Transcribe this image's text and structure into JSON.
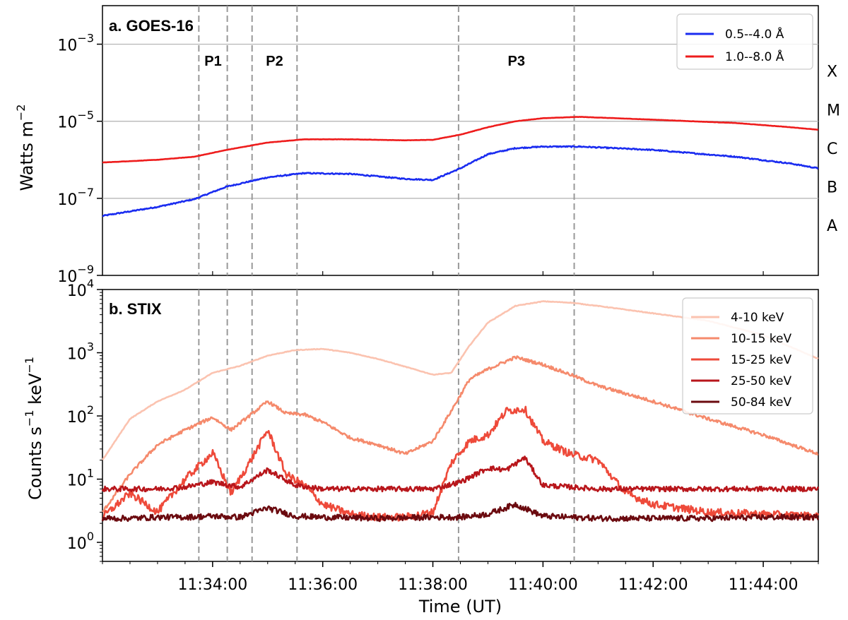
{
  "chart_data": [
    {
      "type": "line",
      "title": "a. GOES-16",
      "ylabel": "Watts m",
      "ylabel_exponent": "−2",
      "yscale": "log",
      "ylim": [
        1e-09,
        0.01
      ],
      "yticks": [
        {
          "value": 1e-09,
          "base": "10",
          "exp": "−9"
        },
        {
          "value": 1e-07,
          "base": "10",
          "exp": "−7"
        },
        {
          "value": 1e-05,
          "base": "10",
          "exp": "−5"
        },
        {
          "value": 0.001,
          "base": "10",
          "exp": "−3"
        }
      ],
      "class_labels": [
        {
          "label": "X",
          "value": 0.0002
        },
        {
          "label": "M",
          "value": 2e-05
        },
        {
          "label": "C",
          "value": 2e-06
        },
        {
          "label": "B",
          "value": 2e-07
        },
        {
          "label": "A",
          "value": 2e-08
        }
      ],
      "hgrid": [
        0.001,
        1e-05,
        1e-07
      ],
      "legend": "top-right",
      "series": [
        {
          "name": "0.5--4.0 Å",
          "color": "#1a2cf0",
          "x": [
            "11:32:00",
            "11:33:00",
            "11:33:40",
            "11:34:15",
            "11:35:00",
            "11:35:40",
            "11:36:30",
            "11:37:30",
            "11:38:00",
            "11:38:30",
            "11:39:00",
            "11:39:30",
            "11:40:00",
            "11:40:40",
            "11:42:00",
            "11:43:30",
            "11:44:30",
            "11:45:00"
          ],
          "y": [
            3.5e-08,
            6e-08,
            9.5e-08,
            2e-07,
            3.5e-07,
            4.5e-07,
            4.3e-07,
            3.2e-07,
            3e-07,
            6e-07,
            1.4e-06,
            2e-06,
            2.2e-06,
            2.2e-06,
            1.8e-06,
            1.2e-06,
            8e-07,
            6e-07
          ]
        },
        {
          "name": "1.0--8.0 Å",
          "color": "#ee1c1c",
          "x": [
            "11:32:00",
            "11:33:00",
            "11:33:40",
            "11:34:15",
            "11:35:00",
            "11:35:40",
            "11:36:30",
            "11:37:30",
            "11:38:00",
            "11:38:30",
            "11:39:00",
            "11:39:30",
            "11:40:00",
            "11:40:40",
            "11:42:00",
            "11:43:30",
            "11:44:30",
            "11:45:00"
          ],
          "y": [
            8.5e-07,
            1e-06,
            1.2e-06,
            1.8e-06,
            2.8e-06,
            3.4e-06,
            3.4e-06,
            3.2e-06,
            3.3e-06,
            4.5e-06,
            7e-06,
            1e-05,
            1.2e-05,
            1.3e-05,
            1.1e-05,
            9e-06,
            7e-06,
            6e-06
          ]
        }
      ]
    },
    {
      "type": "line",
      "title": "b. STIX",
      "ylabel": "Counts s",
      "ylabel_exponent1": "−1",
      "ylabel_mid": " keV",
      "ylabel_exponent2": "−1",
      "yscale": "log",
      "ylim": [
        0.5,
        10000
      ],
      "yticks": [
        {
          "value": 1,
          "base": "10",
          "exp": "0"
        },
        {
          "value": 10,
          "base": "10",
          "exp": "1"
        },
        {
          "value": 100,
          "base": "10",
          "exp": "2"
        },
        {
          "value": 1000,
          "base": "10",
          "exp": "3"
        },
        {
          "value": 10000,
          "base": "10",
          "exp": "4"
        }
      ],
      "xlabel": "Time (UT)",
      "xlim": [
        "11:32:00",
        "11:45:00"
      ],
      "xticks": [
        "11:34:00",
        "11:36:00",
        "11:38:00",
        "11:40:00",
        "11:42:00",
        "11:44:00"
      ],
      "legend": "top-right",
      "series": [
        {
          "name": "4-10 keV",
          "color": "#fbc3b0",
          "x": [
            "11:32:00",
            "11:32:30",
            "11:33:00",
            "11:33:30",
            "11:34:00",
            "11:34:30",
            "11:35:00",
            "11:35:30",
            "11:36:00",
            "11:36:30",
            "11:37:00",
            "11:37:30",
            "11:38:00",
            "11:38:20",
            "11:38:40",
            "11:39:00",
            "11:39:30",
            "11:40:00",
            "11:40:30",
            "11:41:00",
            "11:42:00",
            "11:43:00",
            "11:44:00",
            "11:45:00"
          ],
          "y": [
            20,
            90,
            170,
            260,
            480,
            620,
            900,
            1100,
            1150,
            1000,
            800,
            600,
            450,
            480,
            1300,
            3000,
            5500,
            6500,
            6200,
            5500,
            4200,
            3200,
            1900,
            800
          ]
        },
        {
          "name": "10-15 keV",
          "color": "#f58a6c",
          "x": [
            "11:32:00",
            "11:32:30",
            "11:33:00",
            "11:33:30",
            "11:34:00",
            "11:34:20",
            "11:34:40",
            "11:35:00",
            "11:35:20",
            "11:35:40",
            "11:36:00",
            "11:36:30",
            "11:37:00",
            "11:37:30",
            "11:38:00",
            "11:38:20",
            "11:38:40",
            "11:39:00",
            "11:39:30",
            "11:40:00",
            "11:40:30",
            "11:41:00",
            "11:42:00",
            "11:43:00",
            "11:44:00",
            "11:45:00"
          ],
          "y": [
            3,
            12,
            35,
            60,
            95,
            60,
            100,
            170,
            110,
            105,
            80,
            45,
            35,
            25,
            40,
            120,
            380,
            550,
            850,
            650,
            450,
            300,
            170,
            90,
            50,
            25
          ]
        },
        {
          "name": "15-25 keV",
          "color": "#ee4a3a",
          "x": [
            "11:32:00",
            "11:32:30",
            "11:33:00",
            "11:33:30",
            "11:34:00",
            "11:34:20",
            "11:34:40",
            "11:35:00",
            "11:35:20",
            "11:35:40",
            "11:36:00",
            "11:36:30",
            "11:37:00",
            "11:37:30",
            "11:38:00",
            "11:38:20",
            "11:38:40",
            "11:39:00",
            "11:39:20",
            "11:39:40",
            "11:40:00",
            "11:40:30",
            "11:41:00",
            "11:41:30",
            "11:42:00",
            "11:43:00",
            "11:44:00",
            "11:45:00"
          ],
          "y": [
            2.5,
            6,
            3,
            10,
            26,
            6,
            18,
            60,
            12,
            8,
            4,
            2.8,
            2.5,
            2.5,
            3,
            18,
            40,
            50,
            120,
            130,
            40,
            25,
            20,
            6,
            4,
            3,
            2.8,
            2.6
          ]
        },
        {
          "name": "25-50 keV",
          "color": "#b8161b",
          "x": [
            "11:32:00",
            "11:32:30",
            "11:33:00",
            "11:33:30",
            "11:34:00",
            "11:34:30",
            "11:35:00",
            "11:35:30",
            "11:36:00",
            "11:37:00",
            "11:38:00",
            "11:38:30",
            "11:39:00",
            "11:39:20",
            "11:39:40",
            "11:40:00",
            "11:40:30",
            "11:41:00",
            "11:42:00",
            "11:43:00",
            "11:44:00",
            "11:45:00"
          ],
          "y": [
            7,
            7,
            7,
            7.5,
            9,
            7.5,
            14,
            8,
            7,
            7,
            7,
            9,
            15,
            14,
            22,
            8,
            7.5,
            7,
            7,
            7,
            7,
            7
          ]
        },
        {
          "name": "50-84 keV",
          "color": "#6b0a0f",
          "x": [
            "11:32:00",
            "11:32:30",
            "11:33:00",
            "11:33:30",
            "11:34:00",
            "11:34:30",
            "11:35:00",
            "11:35:30",
            "11:36:00",
            "11:37:00",
            "11:38:00",
            "11:38:30",
            "11:39:00",
            "11:39:30",
            "11:40:00",
            "11:40:30",
            "11:41:00",
            "11:42:00",
            "11:43:00",
            "11:44:00",
            "11:45:00"
          ],
          "y": [
            2.4,
            2.4,
            2.5,
            2.5,
            2.6,
            2.5,
            3.5,
            2.6,
            2.5,
            2.4,
            2.5,
            2.5,
            2.8,
            4,
            2.6,
            2.5,
            2.4,
            2.4,
            2.4,
            2.5,
            2.5
          ]
        }
      ]
    }
  ],
  "phases": [
    {
      "label": "P1",
      "start": "11:33:45",
      "end": "11:34:16"
    },
    {
      "label": "P2",
      "start": "11:34:43",
      "end": "11:35:32"
    },
    {
      "label": "P3",
      "start": "11:38:28",
      "end": "11:40:34"
    }
  ]
}
